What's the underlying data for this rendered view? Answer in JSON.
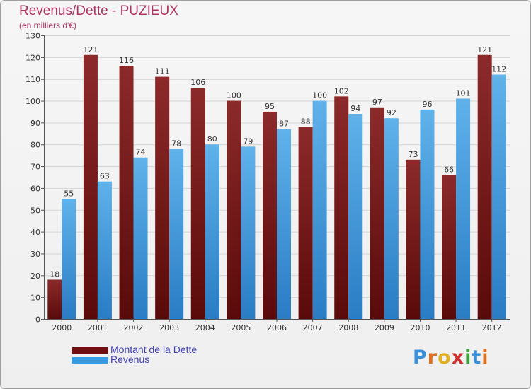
{
  "title": "Revenus/Dette - PUZIEUX",
  "subtitle": "(en milliers d'€)",
  "chart_data": {
    "type": "bar",
    "title": "Revenus/Dette - PUZIEUX",
    "ylabel": "(en milliers d'€)",
    "categories": [
      "2000",
      "2001",
      "2002",
      "2003",
      "2004",
      "2005",
      "2006",
      "2007",
      "2008",
      "2009",
      "2010",
      "2011",
      "2012"
    ],
    "series": [
      {
        "name": "Montant de la Dette",
        "color": "#7a1a1a",
        "values": [
          18,
          121,
          116,
          111,
          106,
          100,
          95,
          88,
          102,
          97,
          73,
          66,
          121
        ]
      },
      {
        "name": "Revenus",
        "color": "#3a9ce0",
        "values": [
          55,
          63,
          74,
          78,
          80,
          79,
          87,
          100,
          94,
          92,
          96,
          101,
          112
        ]
      }
    ],
    "ylim": [
      0,
      130
    ],
    "yticks": [
      0,
      10,
      20,
      30,
      40,
      50,
      60,
      70,
      80,
      90,
      100,
      110,
      120,
      130
    ],
    "grid": true,
    "legend_position": "bottom-left"
  },
  "legend": {
    "dette_label": "Montant de la Dette",
    "revenus_label": "Revenus"
  },
  "logo": {
    "letters": [
      "P",
      "r",
      "o",
      "x",
      "i",
      "t",
      "i"
    ],
    "colors": [
      "#3a8fd8",
      "#e07020",
      "#e0b020",
      "#d03030",
      "#40a040",
      "#3a8fd8",
      "#e07020"
    ]
  }
}
